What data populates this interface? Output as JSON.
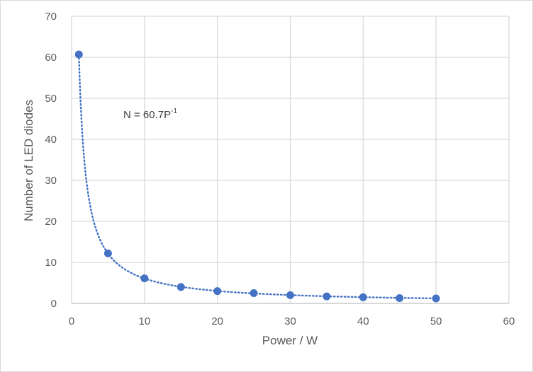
{
  "chart_data": {
    "type": "scatter",
    "xlabel": "Power / W",
    "ylabel": "Number of LED diodes",
    "xlim": [
      0,
      60
    ],
    "ylim": [
      0,
      70
    ],
    "x_ticks": [
      "0",
      "10",
      "20",
      "30",
      "40",
      "50",
      "60"
    ],
    "y_ticks": [
      "0",
      "10",
      "20",
      "30",
      "40",
      "50",
      "60",
      "70"
    ],
    "grid": true,
    "legend": "none",
    "marker_color": "#4472C4",
    "trendline": {
      "type": "power",
      "coefficient": 60.7,
      "exponent": -1,
      "style": "dotted",
      "color": "#4472C4"
    },
    "annotation": {
      "text_main": "N = 60.7P",
      "text_sup": "-1"
    },
    "series": [
      {
        "x": [
          1,
          5,
          10,
          15,
          20,
          25,
          30,
          35,
          40,
          45,
          50
        ],
        "y": [
          60.7,
          12.2,
          6.1,
          4.0,
          3.0,
          2.5,
          2.0,
          1.7,
          1.5,
          1.3,
          1.2
        ]
      }
    ]
  }
}
